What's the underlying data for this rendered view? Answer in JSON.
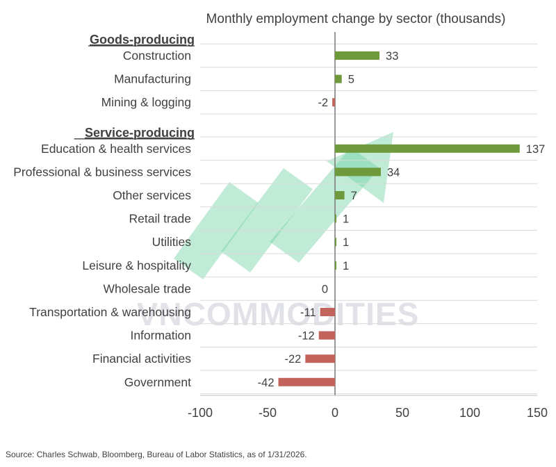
{
  "chart_data": {
    "type": "bar",
    "orientation": "horizontal",
    "title": "Monthly employment change by sector (thousands)",
    "groups": [
      {
        "label": "Goods-producing",
        "categories": [
          "Construction",
          "Manufacturing",
          "Mining & logging"
        ],
        "values": [
          33,
          5,
          -2
        ]
      },
      {
        "label": "Service-producing",
        "categories": [
          "Education & health services",
          "Professional & business services",
          "Other services",
          "Retail trade",
          "Utilities",
          "Leisure & hospitality",
          "Wholesale trade",
          "Transportation & warehousing",
          "Information",
          "Financial activities",
          "Government"
        ],
        "values": [
          137,
          34,
          7,
          1,
          1,
          1,
          0,
          -11,
          -12,
          -22,
          -42
        ]
      }
    ],
    "xlim": [
      -100,
      150
    ],
    "xticks": [
      -100,
      -50,
      0,
      50,
      100,
      150
    ],
    "grid": "horizontal row separators",
    "positive_color": "#6e9a3c",
    "negative_color": "#c2645c"
  },
  "watermark": {
    "text": "VNCOMMODITIES"
  },
  "source_note": "Source: Charles Schwab, Bloomberg, Bureau of Labor Statistics, as of 1/31/2026."
}
